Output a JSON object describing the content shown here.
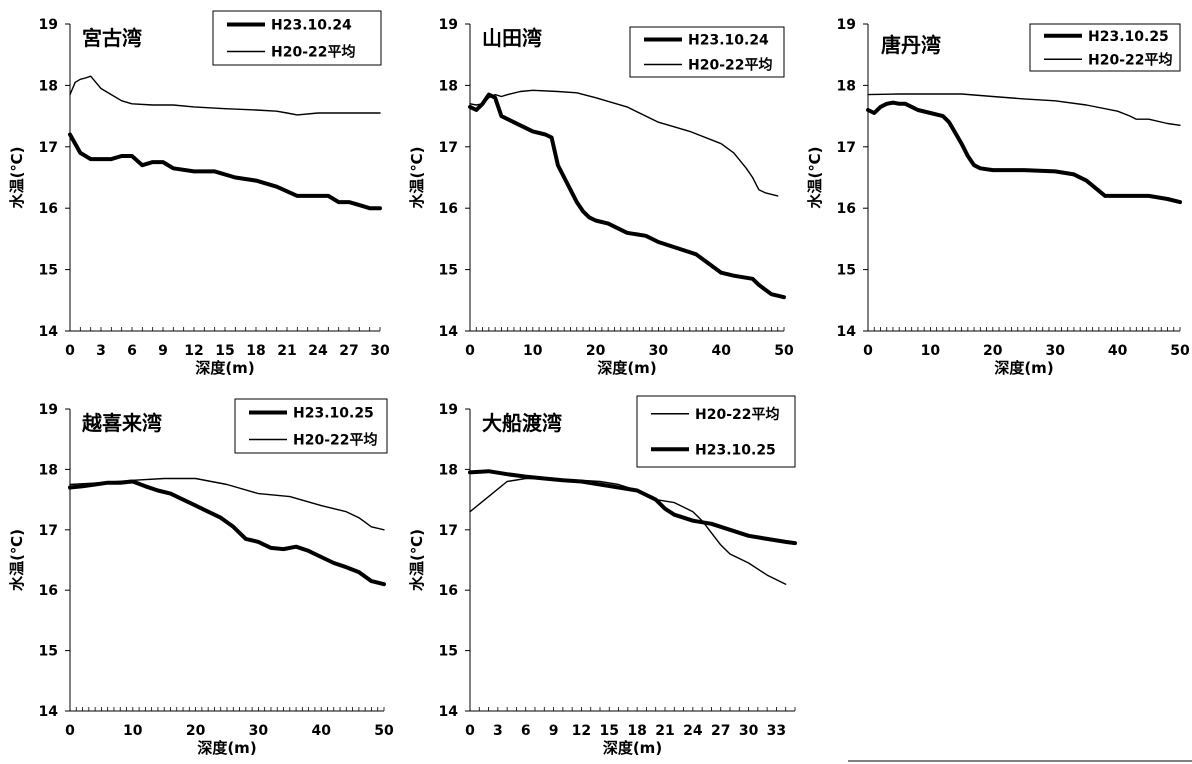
{
  "chart_data": [
    {
      "type": "line",
      "title": "宮古湾",
      "xlabel": "深度(m)",
      "ylabel": "水温(℃)",
      "xlim": [
        0,
        30
      ],
      "ylim": [
        14,
        19
      ],
      "xticks": [
        0,
        3,
        6,
        9,
        12,
        15,
        18,
        21,
        24,
        27,
        30
      ],
      "yticks": [
        14,
        15,
        16,
        17,
        18,
        19
      ],
      "legend_position": "top-right",
      "series": [
        {
          "name": "H23.10.24",
          "style": "bold",
          "x": [
            0,
            1,
            2,
            3,
            4,
            5,
            6,
            7,
            8,
            9,
            10,
            12,
            14,
            16,
            18,
            20,
            22,
            24,
            25,
            26,
            27,
            28,
            29,
            30
          ],
          "y": [
            17.2,
            16.9,
            16.8,
            16.8,
            16.8,
            16.85,
            16.85,
            16.7,
            16.75,
            16.75,
            16.65,
            16.6,
            16.6,
            16.5,
            16.45,
            16.35,
            16.2,
            16.2,
            16.2,
            16.1,
            16.1,
            16.05,
            16.0,
            16.0
          ]
        },
        {
          "name": "H20-22平均",
          "style": "thin",
          "x": [
            0,
            0.5,
            1,
            1.5,
            2,
            2.5,
            3,
            4,
            5,
            6,
            8,
            10,
            12,
            15,
            18,
            20,
            21,
            22,
            24,
            27,
            30
          ],
          "y": [
            17.85,
            18.05,
            18.1,
            18.12,
            18.15,
            18.05,
            17.95,
            17.85,
            17.75,
            17.7,
            17.68,
            17.68,
            17.65,
            17.62,
            17.6,
            17.58,
            17.55,
            17.52,
            17.55,
            17.55,
            17.55
          ]
        }
      ]
    },
    {
      "type": "line",
      "title": "山田湾",
      "xlabel": "深度(m)",
      "ylabel": "水温(℃)",
      "xlim": [
        0,
        50
      ],
      "ylim": [
        14,
        19
      ],
      "xticks": [
        0,
        10,
        20,
        30,
        40,
        50
      ],
      "yticks": [
        14,
        15,
        16,
        17,
        18,
        19
      ],
      "legend_position": "top-right",
      "series": [
        {
          "name": "H23.10.24",
          "style": "bold",
          "x": [
            0,
            1,
            2,
            3,
            4,
            5,
            6,
            8,
            10,
            12,
            13,
            14,
            15,
            16,
            17,
            18,
            19,
            20,
            22,
            25,
            28,
            30,
            33,
            36,
            38,
            40,
            42,
            45,
            46,
            48,
            50
          ],
          "y": [
            17.65,
            17.6,
            17.7,
            17.85,
            17.8,
            17.5,
            17.45,
            17.35,
            17.25,
            17.2,
            17.15,
            16.7,
            16.5,
            16.3,
            16.1,
            15.95,
            15.85,
            15.8,
            15.75,
            15.6,
            15.55,
            15.45,
            15.35,
            15.25,
            15.1,
            14.95,
            14.9,
            14.85,
            14.75,
            14.6,
            14.55
          ]
        },
        {
          "name": "H20-22平均",
          "style": "thin",
          "x": [
            0,
            1,
            2,
            3,
            4,
            5,
            6,
            8,
            10,
            14,
            17,
            20,
            25,
            30,
            35,
            40,
            42,
            44,
            45,
            46,
            47,
            49
          ],
          "y": [
            17.7,
            17.68,
            17.7,
            17.8,
            17.85,
            17.82,
            17.85,
            17.9,
            17.92,
            17.9,
            17.88,
            17.8,
            17.65,
            17.4,
            17.25,
            17.05,
            16.9,
            16.65,
            16.5,
            16.3,
            16.25,
            16.2
          ]
        }
      ]
    },
    {
      "type": "line",
      "title": "唐丹湾",
      "xlabel": "深度(m)",
      "ylabel": "水温(℃)",
      "xlim": [
        0,
        50
      ],
      "ylim": [
        14,
        19
      ],
      "xticks": [
        0,
        10,
        20,
        30,
        40,
        50
      ],
      "yticks": [
        14,
        15,
        16,
        17,
        18,
        19
      ],
      "legend_position": "top-right",
      "series": [
        {
          "name": "H23.10.25",
          "style": "bold",
          "x": [
            0,
            1,
            2,
            3,
            4,
            5,
            6,
            7,
            8,
            10,
            12,
            13,
            15,
            16,
            17,
            18,
            20,
            25,
            30,
            33,
            35,
            38,
            40,
            45,
            48,
            50
          ],
          "y": [
            17.6,
            17.55,
            17.65,
            17.7,
            17.72,
            17.7,
            17.7,
            17.65,
            17.6,
            17.55,
            17.5,
            17.4,
            17.05,
            16.85,
            16.7,
            16.65,
            16.62,
            16.62,
            16.6,
            16.55,
            16.45,
            16.2,
            16.2,
            16.2,
            16.15,
            16.1
          ]
        },
        {
          "name": "H20-22平均",
          "style": "thin",
          "x": [
            0,
            5,
            10,
            15,
            20,
            25,
            30,
            35,
            40,
            42,
            43,
            45,
            48,
            50
          ],
          "y": [
            17.85,
            17.86,
            17.86,
            17.86,
            17.82,
            17.78,
            17.75,
            17.68,
            17.58,
            17.5,
            17.45,
            17.45,
            17.38,
            17.35
          ]
        }
      ]
    },
    {
      "type": "line",
      "title": "越喜来湾",
      "xlabel": "深度(m)",
      "ylabel": "水温(℃)",
      "xlim": [
        0,
        50
      ],
      "ylim": [
        14,
        19
      ],
      "xticks": [
        0,
        10,
        20,
        30,
        40,
        50
      ],
      "yticks": [
        14,
        15,
        16,
        17,
        18,
        19
      ],
      "legend_position": "top-right",
      "series": [
        {
          "name": "H23.10.25",
          "style": "bold",
          "x": [
            0,
            2,
            4,
            6,
            8,
            10,
            12,
            14,
            16,
            18,
            20,
            22,
            24,
            26,
            28,
            30,
            32,
            34,
            36,
            38,
            40,
            42,
            44,
            46,
            48,
            50
          ],
          "y": [
            17.7,
            17.72,
            17.75,
            17.78,
            17.78,
            17.8,
            17.72,
            17.65,
            17.6,
            17.5,
            17.4,
            17.3,
            17.2,
            17.05,
            16.85,
            16.8,
            16.7,
            16.68,
            16.72,
            16.65,
            16.55,
            16.45,
            16.38,
            16.3,
            16.15,
            16.1
          ]
        },
        {
          "name": "H20-22平均",
          "style": "thin",
          "x": [
            0,
            5,
            10,
            15,
            20,
            25,
            30,
            35,
            40,
            44,
            46,
            48,
            50
          ],
          "y": [
            17.75,
            17.78,
            17.82,
            17.85,
            17.85,
            17.75,
            17.6,
            17.55,
            17.4,
            17.3,
            17.2,
            17.05,
            17.0
          ]
        }
      ]
    },
    {
      "type": "line",
      "title": "大船渡湾",
      "xlabel": "深度(m)",
      "ylabel": "水温(℃)",
      "xlim": [
        0,
        35
      ],
      "ylim": [
        14,
        19
      ],
      "xticks": [
        0,
        3,
        6,
        9,
        12,
        15,
        18,
        21,
        24,
        27,
        30,
        33
      ],
      "yticks": [
        14,
        15,
        16,
        17,
        18,
        19
      ],
      "legend_position": "top-right",
      "series": [
        {
          "name": "H20-22平均",
          "style": "thin",
          "x": [
            0,
            2,
            4,
            6,
            8,
            10,
            12,
            14,
            16,
            18,
            20,
            22,
            24,
            25,
            26,
            27,
            28,
            30,
            32,
            34
          ],
          "y": [
            17.3,
            17.55,
            17.8,
            17.85,
            17.85,
            17.82,
            17.82,
            17.8,
            17.75,
            17.65,
            17.5,
            17.45,
            17.3,
            17.15,
            16.95,
            16.75,
            16.6,
            16.45,
            16.25,
            16.1
          ]
        },
        {
          "name": "H23.10.25",
          "style": "bold",
          "x": [
            0,
            2,
            4,
            6,
            8,
            10,
            12,
            14,
            16,
            18,
            20,
            21,
            22,
            24,
            26,
            28,
            30,
            32,
            34,
            35
          ],
          "y": [
            17.95,
            17.97,
            17.92,
            17.88,
            17.85,
            17.82,
            17.8,
            17.75,
            17.7,
            17.65,
            17.5,
            17.35,
            17.25,
            17.15,
            17.1,
            17.0,
            16.9,
            16.85,
            16.8,
            16.78
          ]
        }
      ]
    }
  ]
}
